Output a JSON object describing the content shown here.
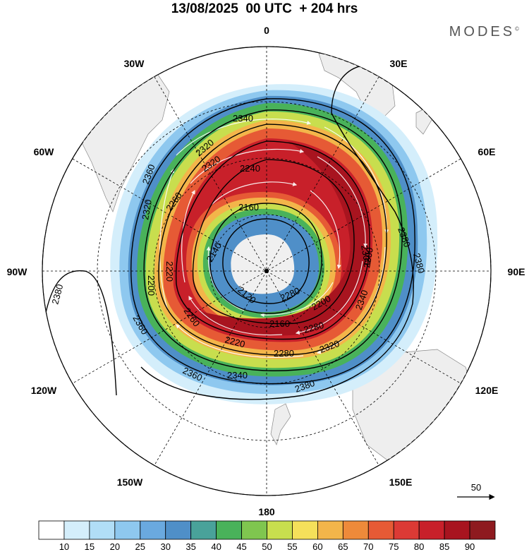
{
  "header": {
    "title": "13/08/2025  00 UTC  + 204 hrs",
    "brand": "MODES",
    "brand_mark": "©"
  },
  "map": {
    "projection": "south-polar-stereographic",
    "longitude_labels": [
      {
        "label": "0",
        "lon": 0
      },
      {
        "label": "30E",
        "lon": 30
      },
      {
        "label": "60E",
        "lon": 60
      },
      {
        "label": "90E",
        "lon": 90
      },
      {
        "label": "120E",
        "lon": 120
      },
      {
        "label": "150E",
        "lon": 150
      },
      {
        "label": "180",
        "lon": 180
      },
      {
        "label": "150W",
        "lon": -150
      },
      {
        "label": "120W",
        "lon": -120
      },
      {
        "label": "90W",
        "lon": -90
      },
      {
        "label": "60W",
        "lon": -60
      },
      {
        "label": "30W",
        "lon": -30
      }
    ],
    "contour_labels": [
      "2340",
      "2320",
      "2240",
      "2160",
      "2140",
      "2120",
      "2160",
      "2200",
      "2280",
      "2320",
      "2340",
      "2360",
      "2380",
      "2360",
      "2380",
      "2300",
      "2220",
      "2260",
      "2280",
      "2340",
      "2360",
      "2380",
      "2320",
      "2260",
      "2200",
      "2220",
      "2280",
      "2300",
      "2380",
      "2320"
    ],
    "wind_reference": {
      "label": "50"
    }
  },
  "colorbar": {
    "ticks": [
      "10",
      "15",
      "20",
      "25",
      "30",
      "35",
      "40",
      "45",
      "50",
      "55",
      "60",
      "65",
      "70",
      "75",
      "80",
      "85",
      "90"
    ],
    "colors": [
      "#ffffff",
      "#d4eefb",
      "#b1def7",
      "#8ec8ef",
      "#6aa9df",
      "#4f8fc8",
      "#49a29a",
      "#49b25a",
      "#7fc64f",
      "#c8de4e",
      "#f5e05a",
      "#f3b54a",
      "#ee8a3a",
      "#e65a35",
      "#dc3a35",
      "#c8202a",
      "#a8141f",
      "#8e1a1f"
    ]
  }
}
